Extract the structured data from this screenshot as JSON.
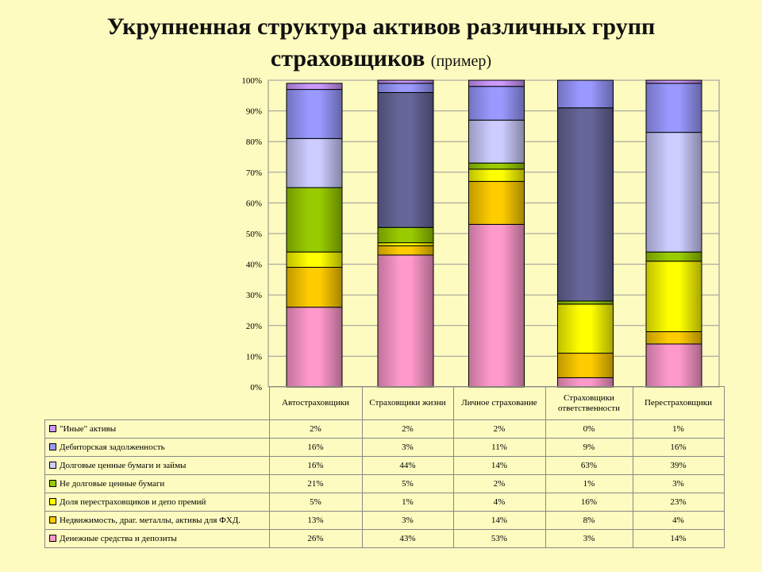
{
  "title": "Укрупненная структура активов различных групп",
  "title_line2": "страховщиков",
  "subtitle": "(пример)",
  "chart_data": {
    "type": "bar",
    "stacked": true,
    "normalized_percent": true,
    "ylim": [
      0,
      100
    ],
    "yticks": [
      "0%",
      "10%",
      "20%",
      "30%",
      "40%",
      "50%",
      "60%",
      "70%",
      "80%",
      "90%",
      "100%"
    ],
    "categories": [
      "Автостраховщики",
      "Страховщики жизни",
      "Личное страхование",
      "Страховщики ответственности",
      "Перестраховщики"
    ],
    "series": [
      {
        "name": "Денежные средства и депозиты",
        "color": "#ff99cc",
        "values": [
          26,
          43,
          53,
          3,
          14
        ],
        "labels": [
          "26%",
          "43%",
          "53%",
          "3%",
          "14%"
        ]
      },
      {
        "name": "Недвижимость, драг. металлы, активы для ФХД.",
        "color": "#ffcc00",
        "values": [
          13,
          3,
          14,
          8,
          4
        ],
        "labels": [
          "13%",
          "3%",
          "14%",
          "8%",
          "4%"
        ]
      },
      {
        "name": "Доля перестраховщиков и депо премий",
        "color": "#ffff00",
        "values": [
          5,
          1,
          4,
          16,
          23
        ],
        "labels": [
          "5%",
          "1%",
          "4%",
          "16%",
          "23%"
        ]
      },
      {
        "name": "Не долговые ценные бумаги",
        "color": "#99cc00",
        "values": [
          21,
          5,
          2,
          1,
          3
        ],
        "labels": [
          "21%",
          "5%",
          "2%",
          "1%",
          "3%"
        ]
      },
      {
        "name": "Долговые ценные бумаги и займы",
        "color": "#ccccff",
        "values": [
          16,
          44,
          14,
          63,
          39
        ],
        "labels": [
          "16%",
          "44%",
          "14%",
          "63%",
          "39%"
        ]
      },
      {
        "name": "Дебиторская задолженность",
        "color": "#9999ff",
        "values": [
          16,
          3,
          11,
          9,
          16
        ],
        "labels": [
          "16%",
          "3%",
          "11%",
          "9%",
          "16%"
        ]
      },
      {
        "name": "\"Иные\" активы",
        "color": "#cc99ff",
        "values": [
          2,
          2,
          2,
          0,
          1
        ],
        "labels": [
          "2%",
          "2%",
          "2%",
          "0%",
          "1%"
        ]
      }
    ],
    "special_colors": {
      "strakhovshchiki_zhizni_debt_segment": "#666699",
      "strakhovshchiki_otvetstvennosti_debt_segment": "#666699",
      "debitor_autoinsurance_mid": "#9999ff"
    },
    "grid": true,
    "legend": "data-table-below"
  }
}
